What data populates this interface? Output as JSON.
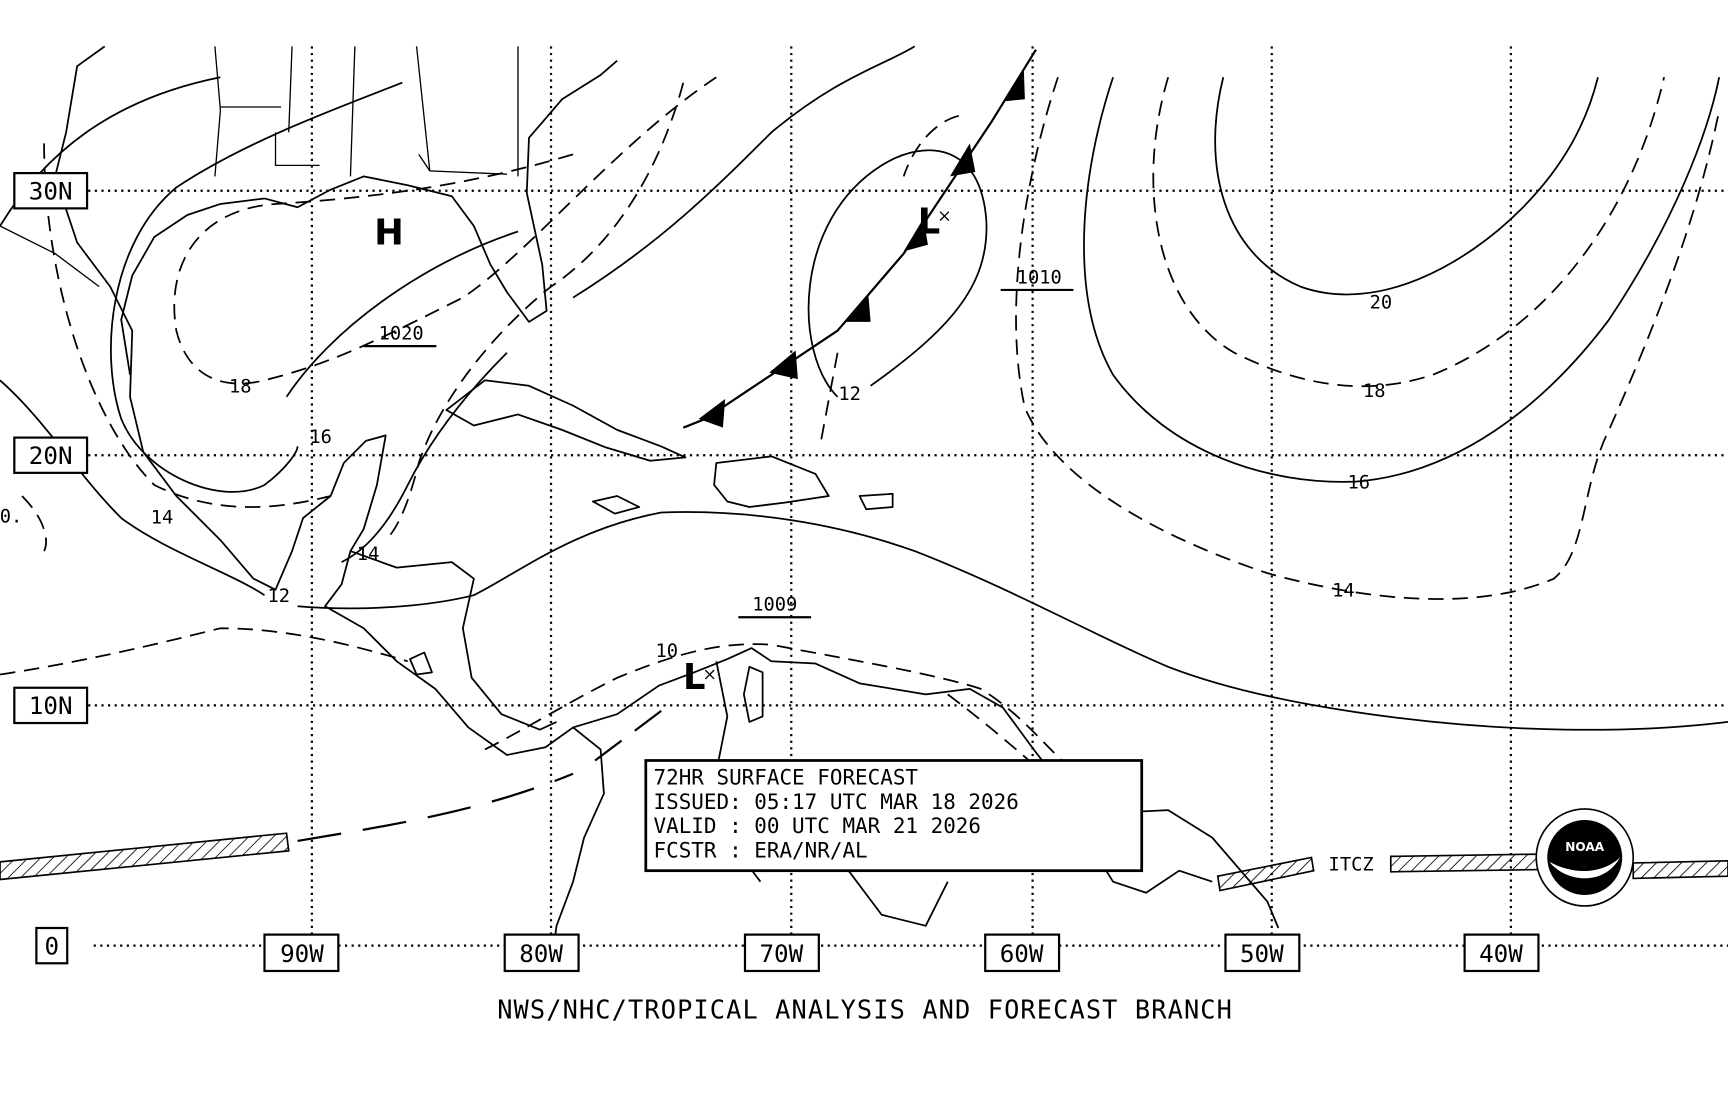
{
  "map": {
    "latitude_labels": [
      "30N",
      "20N",
      "10N",
      "0"
    ],
    "longitude_labels": [
      "90W",
      "80W",
      "70W",
      "60W",
      "50W",
      "40W"
    ],
    "pressure_centers": [
      {
        "type": "H"
      },
      {
        "type": "L"
      },
      {
        "type": "L"
      }
    ],
    "central_pressures": [
      "1020",
      "1010",
      "1009"
    ],
    "isobar_labels": [
      "18",
      "16",
      "14",
      "14",
      "12",
      "10",
      "12",
      "20",
      "18",
      "16",
      "14",
      "0."
    ],
    "itcz_label": "ITCZ"
  },
  "info_box": {
    "line1": "72HR SURFACE FORECAST",
    "line2": "ISSUED: 05:17 UTC MAR 18 2026",
    "line3": "VALID : 00 UTC MAR 21 2026",
    "line4": "FCSTR : ERA/NR/AL"
  },
  "logo": {
    "text": "NOAA"
  },
  "footer": "NWS/NHC/TROPICAL ANALYSIS AND FORECAST BRANCH"
}
